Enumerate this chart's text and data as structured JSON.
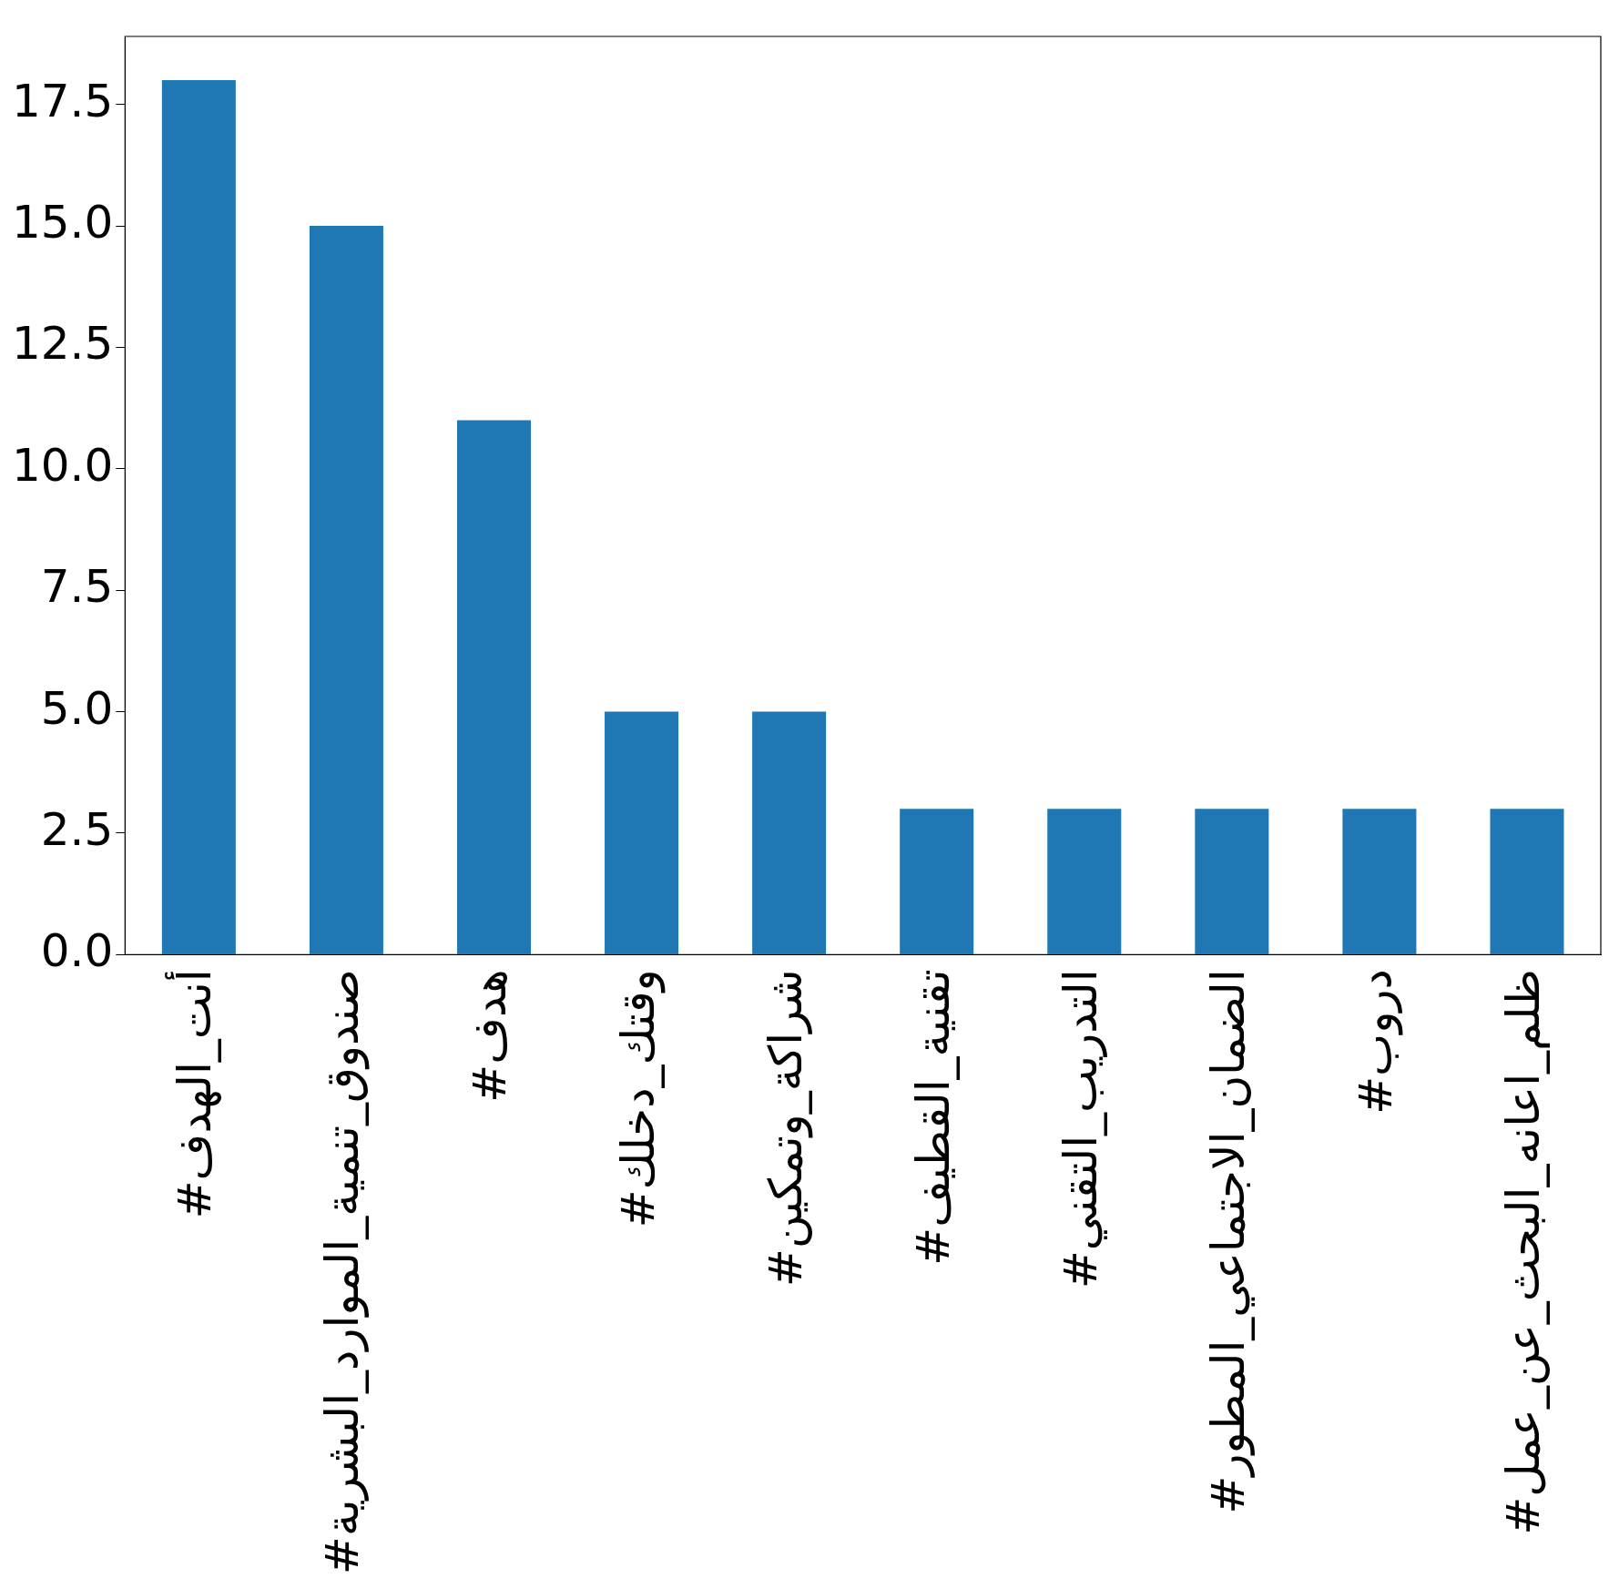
{
  "chart_data": {
    "type": "bar",
    "categories": [
      "#أنت_الهدف",
      "#صندوق_تنمية_الموارد_البشرية",
      "#هدف",
      "#وقتك_دخلك",
      "#شراكة_وتمكين",
      "#تقنية_القطيف",
      "#التدريب_التقني",
      "#الضمان_الاجتماعي_المطور",
      "#دروب",
      "#ظلم_اعانه_البحث_عن_عمل"
    ],
    "values": [
      18,
      15,
      11,
      5,
      5,
      3,
      3,
      3,
      3,
      3
    ],
    "color": "#1f77b4",
    "ylim": [
      0,
      18.9
    ],
    "yticks": [
      {
        "value": 0,
        "label": "0.0"
      },
      {
        "value": 2.5,
        "label": "2.5"
      },
      {
        "value": 5,
        "label": "5.0"
      },
      {
        "value": 7.5,
        "label": "7.5"
      },
      {
        "value": 10,
        "label": "10.0"
      },
      {
        "value": 12.5,
        "label": "12.5"
      },
      {
        "value": 15,
        "label": "15.0"
      },
      {
        "value": 17.5,
        "label": "17.5"
      }
    ],
    "grid": false,
    "legend": false
  }
}
